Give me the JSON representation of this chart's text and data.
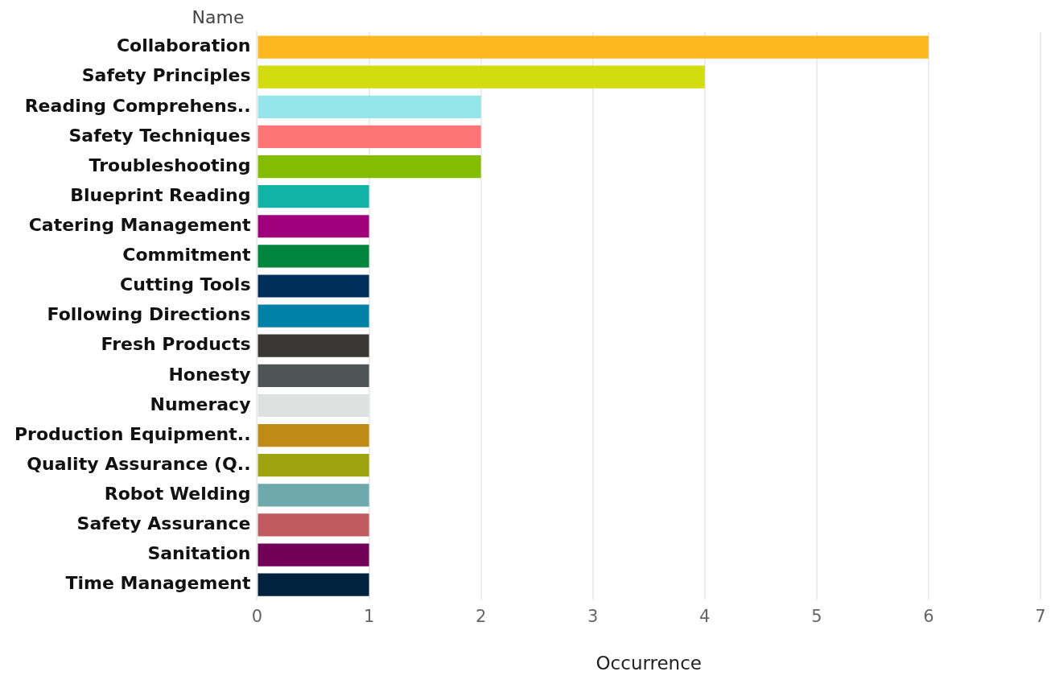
{
  "chart_data": {
    "type": "bar",
    "orientation": "horizontal",
    "xlabel": "Occurrence",
    "ylabel": "Name",
    "categories": [
      "Collaboration",
      "Safety Principles",
      "Reading Comprehens..",
      "Safety Techniques",
      "Troubleshooting",
      "Blueprint Reading",
      "Catering Management",
      "Commitment",
      "Cutting Tools",
      "Following Directions",
      "Fresh Products",
      "Honesty",
      "Numeracy",
      "Production Equipment..",
      "Quality Assurance (Q..",
      "Robot Welding",
      "Safety Assurance",
      "Sanitation",
      "Time Management"
    ],
    "values": [
      6,
      4,
      2,
      2,
      2,
      1,
      1,
      1,
      1,
      1,
      1,
      1,
      1,
      1,
      1,
      1,
      1,
      1,
      1
    ],
    "colors": [
      "#fdb71f",
      "#d2dc0e",
      "#95e6ea",
      "#ff7477",
      "#84bd00",
      "#13b3a8",
      "#a0007b",
      "#00853f",
      "#002f5c",
      "#0081a6",
      "#3a3734",
      "#4f5457",
      "#dfe1e1",
      "#c08a17",
      "#9ea40f",
      "#6ea9ad",
      "#c15b61",
      "#720058",
      "#00223e"
    ],
    "xlim": [
      0,
      7
    ],
    "xticks": [
      0,
      1,
      2,
      3,
      4,
      5,
      6,
      7
    ],
    "grid": "x",
    "legend": false
  }
}
